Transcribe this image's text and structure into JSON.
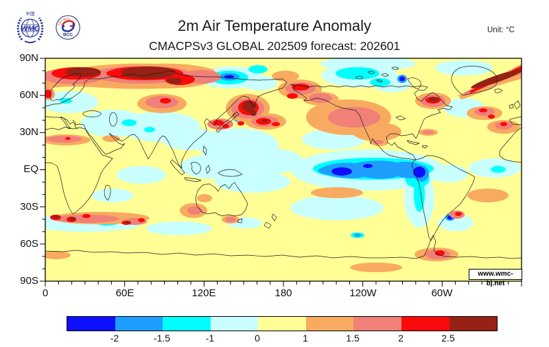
{
  "header": {
    "title": "2m Air Temperature Anomaly",
    "subtitle": "CMACPSv3 GLOBAL 202509 forecast: 202601",
    "unit_label": "Unit: °C",
    "logos": {
      "wmc_top": "中国",
      "wmc_text": "WMC",
      "bcc_text": "BCC",
      "bcc_arc_text": "北京气候中心"
    }
  },
  "map": {
    "watermark": "www.wmc-bj.net",
    "y_tick_labels": [
      "90N",
      "60N",
      "30N",
      "EQ",
      "30S",
      "60S",
      "90S"
    ],
    "x_tick_labels": [
      "0",
      "60E",
      "120E",
      "180",
      "120W",
      "60W"
    ]
  },
  "colorbar": {
    "tick_labels": [
      "-2",
      "-1.5",
      "-1",
      "0",
      "1",
      "1.5",
      "2",
      "2.5"
    ],
    "colors": [
      "#0F0FFF",
      "#1E9FFF",
      "#00FFFF",
      "#C9FFFF",
      "#FFFF96",
      "#F8AB60",
      "#F08078",
      "#FA0A0A",
      "#972114"
    ]
  },
  "chart_data": {
    "type": "heatmap",
    "title": "2m Air Temperature Anomaly",
    "subtitle": "CMACPSv3 GLOBAL 202509 forecast: 202601",
    "unit": "°C",
    "projection": "global cylindrical lat-lon, longitude 0-360E (Pacific-centered), latitude 90S-90N",
    "x_axis": {
      "tick_labels": [
        "0",
        "60E",
        "120E",
        "180",
        "120W",
        "60W"
      ],
      "range_deg": [
        0,
        360
      ],
      "minor_tick_step_deg": 10
    },
    "y_axis": {
      "tick_labels": [
        "90N",
        "60N",
        "30N",
        "EQ",
        "30S",
        "60S",
        "90S"
      ],
      "range_deg": [
        -90,
        90
      ],
      "minor_tick_step_deg": 10
    },
    "colorbar_levels": [
      -2,
      -1.5,
      -1,
      0,
      1,
      1.5,
      2,
      2.5
    ],
    "colorbar_colors": [
      "#0F0FFF",
      "#1E9FFF",
      "#00FFFF",
      "#C9FFFF",
      "#FFFF96",
      "#F8AB60",
      "#F08078",
      "#FA0A0A",
      "#972114"
    ],
    "legend_position": "bottom",
    "notable_anomalies": [
      {
        "region": "Arctic Siberian coast (70-85N, 0-120E)",
        "anomaly_c": "+2 to >+2.5"
      },
      {
        "region": "Kamchatka / Sea of Okhotsk",
        "anomaly_c": ">+2.5"
      },
      {
        "region": "Seas east of Japan (35-45N, 150-175E)",
        "anomaly_c": "+1.5 to +2.5"
      },
      {
        "region": "East Greenland coastal band",
        "anomaly_c": ">+2.5"
      },
      {
        "region": "Hudson Bay / Quebec",
        "anomaly_c": "+2 to >+2.5"
      },
      {
        "region": "Central North America",
        "anomaly_c": "+1 to +1.5"
      },
      {
        "region": "Bering Sea / Alaska",
        "anomaly_c": "+1 to +2"
      },
      {
        "region": "Equatorial eastern Pacific cold tongue (La Nina)",
        "anomaly_c": "-1 to <-2"
      },
      {
        "region": "Peru coast",
        "anomaly_c": "<-2"
      },
      {
        "region": "Arctic near 130-160E",
        "anomaly_c": "-1 to -2"
      },
      {
        "region": "Canadian Arctic Archipelago",
        "anomaly_c": "-1 to -1.5"
      },
      {
        "region": "Europe and central Asia",
        "anomaly_c": "-1 to 0"
      },
      {
        "region": "Sea near Hokkaido, Japan",
        "anomaly_c": "<-2"
      },
      {
        "region": "Southern Ocean south of Africa (45-55S)",
        "anomaly_c": "mixed spots -2 to >+2.5"
      },
      {
        "region": "Southeast Australia",
        "anomaly_c": "+1 to +1.5"
      },
      {
        "region": "Antarctic Peninsula",
        "anomaly_c": "+1 to +2"
      }
    ]
  }
}
